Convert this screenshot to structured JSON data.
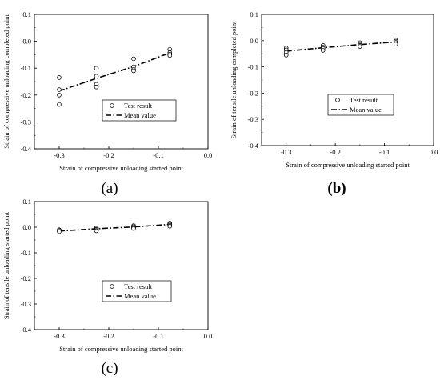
{
  "chart_data": [
    {
      "type": "scatter",
      "panel": "(a)",
      "xlabel": "Strain of compressive unloading started point",
      "ylabel": "Strain of compressive unloading completed point",
      "xlim": [
        -0.35,
        0.0
      ],
      "ylim": [
        -0.4,
        0.1
      ],
      "xticks": [
        "-0.3",
        "-0.2",
        "-0.1",
        "0.0"
      ],
      "yticks": [
        "-0.4",
        "-0.3",
        "-0.2",
        "-0.1",
        "0.0",
        "0.1"
      ],
      "legend": {
        "position": "center-right",
        "entries": [
          "Test result",
          "Mean value"
        ]
      },
      "series": [
        {
          "name": "Test result",
          "style": "open-circle",
          "points": [
            [
              -0.3,
              -0.135
            ],
            [
              -0.3,
              -0.18
            ],
            [
              -0.3,
              -0.2
            ],
            [
              -0.3,
              -0.235
            ],
            [
              -0.225,
              -0.1
            ],
            [
              -0.225,
              -0.13
            ],
            [
              -0.225,
              -0.16
            ],
            [
              -0.225,
              -0.17
            ],
            [
              -0.15,
              -0.065
            ],
            [
              -0.15,
              -0.095
            ],
            [
              -0.15,
              -0.105
            ],
            [
              -0.15,
              -0.11
            ],
            [
              -0.077,
              -0.03
            ],
            [
              -0.077,
              -0.042
            ],
            [
              -0.077,
              -0.048
            ],
            [
              -0.077,
              -0.053
            ]
          ]
        },
        {
          "name": "Mean value",
          "style": "dash-dot",
          "points": [
            [
              -0.3,
              -0.185
            ],
            [
              -0.225,
              -0.138
            ],
            [
              -0.15,
              -0.094
            ],
            [
              -0.077,
              -0.043
            ]
          ]
        }
      ]
    },
    {
      "type": "scatter",
      "panel": "(b)",
      "xlabel": "Strain of compressive unloading started point",
      "ylabel": "Strain of tensile unloading completed point",
      "xlim": [
        -0.35,
        0.0
      ],
      "ylim": [
        -0.4,
        0.1
      ],
      "xticks": [
        "-0.3",
        "-0.2",
        "-0.1",
        "0.0"
      ],
      "yticks": [
        "-0.4",
        "-0.3",
        "-0.2",
        "-0.1",
        "0.0",
        "0.1"
      ],
      "legend": {
        "position": "center-right",
        "entries": [
          "Test result",
          "Mean value"
        ]
      },
      "series": [
        {
          "name": "Test result",
          "style": "open-circle",
          "points": [
            [
              -0.3,
              -0.028
            ],
            [
              -0.3,
              -0.035
            ],
            [
              -0.3,
              -0.045
            ],
            [
              -0.3,
              -0.055
            ],
            [
              -0.225,
              -0.018
            ],
            [
              -0.225,
              -0.025
            ],
            [
              -0.225,
              -0.03
            ],
            [
              -0.225,
              -0.037
            ],
            [
              -0.15,
              -0.008
            ],
            [
              -0.15,
              -0.014
            ],
            [
              -0.15,
              -0.018
            ],
            [
              -0.15,
              -0.022
            ],
            [
              -0.077,
              0.003
            ],
            [
              -0.077,
              -0.002
            ],
            [
              -0.077,
              -0.007
            ],
            [
              -0.077,
              -0.013
            ]
          ]
        },
        {
          "name": "Mean value",
          "style": "dash-dot",
          "points": [
            [
              -0.3,
              -0.04
            ],
            [
              -0.225,
              -0.027
            ],
            [
              -0.15,
              -0.015
            ],
            [
              -0.077,
              -0.005
            ]
          ]
        }
      ]
    },
    {
      "type": "scatter",
      "panel": "(c)",
      "xlabel": "Strain of compressive unloading started point",
      "ylabel": "Strain of tensile unloading started point",
      "xlim": [
        -0.35,
        0.0
      ],
      "ylim": [
        -0.4,
        0.1
      ],
      "xticks": [
        "-0.3",
        "-0.2",
        "-0.1",
        "0.0"
      ],
      "yticks": [
        "-0.4",
        "-0.3",
        "-0.2",
        "-0.1",
        "0.0",
        "0.1"
      ],
      "legend": {
        "position": "center-right",
        "entries": [
          "Test result",
          "Mean value"
        ]
      },
      "series": [
        {
          "name": "Test result",
          "style": "open-circle",
          "points": [
            [
              -0.3,
              -0.01
            ],
            [
              -0.3,
              -0.013
            ],
            [
              -0.3,
              -0.017
            ],
            [
              -0.225,
              -0.003
            ],
            [
              -0.225,
              -0.007
            ],
            [
              -0.225,
              -0.01
            ],
            [
              -0.225,
              -0.014
            ],
            [
              -0.15,
              0.006
            ],
            [
              -0.15,
              0.002
            ],
            [
              -0.15,
              -0.002
            ],
            [
              -0.15,
              -0.005
            ],
            [
              -0.077,
              0.016
            ],
            [
              -0.077,
              0.012
            ],
            [
              -0.077,
              0.008
            ],
            [
              -0.077,
              0.004
            ]
          ]
        },
        {
          "name": "Mean value",
          "style": "dash-dot",
          "points": [
            [
              -0.3,
              -0.015
            ],
            [
              -0.225,
              -0.006
            ],
            [
              -0.15,
              0.001
            ],
            [
              -0.077,
              0.011
            ]
          ]
        }
      ]
    }
  ]
}
